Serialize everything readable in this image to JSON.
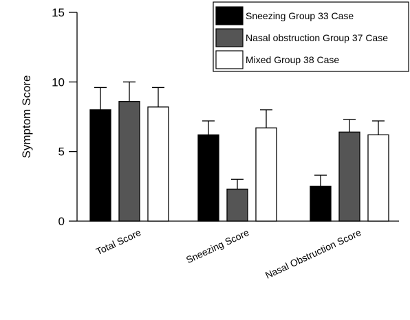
{
  "chart_data": {
    "type": "bar",
    "title": "",
    "xlabel": "",
    "ylabel": "Symptom Score",
    "ylim": [
      0,
      15
    ],
    "yticks": [
      "0",
      "5",
      "10",
      "15"
    ],
    "categories": [
      "Total Score",
      "Sneezing Score",
      "Nasal Obstruction Score"
    ],
    "series": [
      {
        "name": "Sneezing Group 33 Case",
        "color": "#000000",
        "values": [
          8.0,
          6.2,
          2.5
        ],
        "errors": [
          1.6,
          1.0,
          0.8
        ]
      },
      {
        "name": "Nasal obstruction Group 37 Case",
        "color": "#555555",
        "values": [
          8.6,
          2.3,
          6.4
        ],
        "errors": [
          1.4,
          0.7,
          0.9
        ]
      },
      {
        "name": "Mixed Group 38 Case",
        "color": "#ffffff",
        "values": [
          8.2,
          6.7,
          6.2
        ],
        "errors": [
          1.4,
          1.3,
          1.0
        ]
      }
    ],
    "error_bars": true,
    "grid": false,
    "legend_position": "top-right"
  }
}
